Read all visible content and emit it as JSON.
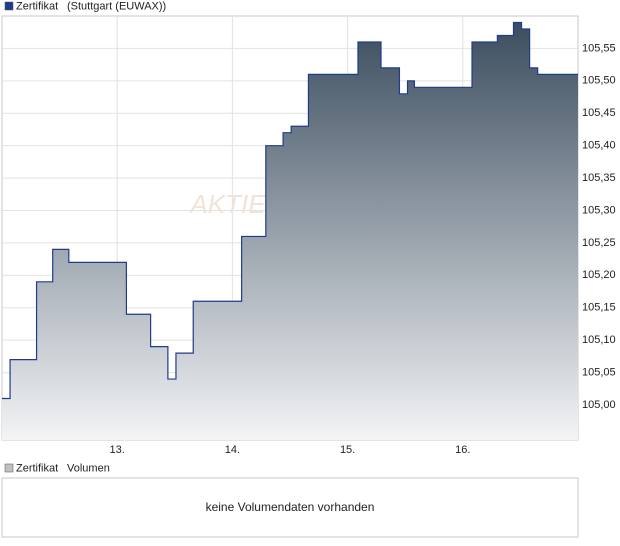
{
  "chart_data": {
    "type": "line",
    "watermark": "AKTIE",
    "source": "(Stuttgart (EUWAX))",
    "series": [
      {
        "name": "Zertifikat",
        "color": "#1f3c8c",
        "x": [
          12.0,
          12.07,
          12.3,
          12.44,
          12.58,
          13.08,
          13.29,
          13.44,
          13.51,
          13.66,
          14.08,
          14.29,
          14.44,
          14.51,
          14.66,
          15.09,
          15.29,
          15.45,
          15.52,
          15.58,
          16.08,
          16.3,
          16.44,
          16.51,
          16.58,
          16.65,
          17.0
        ],
        "values": [
          105.01,
          105.07,
          105.19,
          105.24,
          105.22,
          105.14,
          105.09,
          105.04,
          105.08,
          105.16,
          105.26,
          105.4,
          105.42,
          105.43,
          105.51,
          105.56,
          105.52,
          105.48,
          105.5,
          105.49,
          105.56,
          105.57,
          105.59,
          105.58,
          105.52,
          105.51,
          105.51
        ]
      }
    ],
    "xlim": [
      12.0,
      17.0
    ],
    "xticks": [
      {
        "value": 13,
        "label": "13."
      },
      {
        "value": 14,
        "label": "14."
      },
      {
        "value": 15,
        "label": "15."
      },
      {
        "value": 16,
        "label": "16."
      }
    ],
    "ylim": [
      104.946,
      105.6
    ],
    "yticks": [
      {
        "value": 105.0,
        "label": "105,00"
      },
      {
        "value": 105.05,
        "label": "105,05"
      },
      {
        "value": 105.1,
        "label": "105,10"
      },
      {
        "value": 105.15,
        "label": "105,15"
      },
      {
        "value": 105.2,
        "label": "105,20"
      },
      {
        "value": 105.25,
        "label": "105,25"
      },
      {
        "value": 105.3,
        "label": "105,30"
      },
      {
        "value": 105.35,
        "label": "105,35"
      },
      {
        "value": 105.4,
        "label": "105,40"
      },
      {
        "value": 105.45,
        "label": "105,45"
      },
      {
        "value": 105.5,
        "label": "105,50"
      },
      {
        "value": 105.55,
        "label": "105,55"
      }
    ],
    "grid": true
  },
  "volume": {
    "legend": [
      "Zertifikat",
      "Volumen"
    ],
    "message": "keine Volumendaten vorhanden"
  }
}
